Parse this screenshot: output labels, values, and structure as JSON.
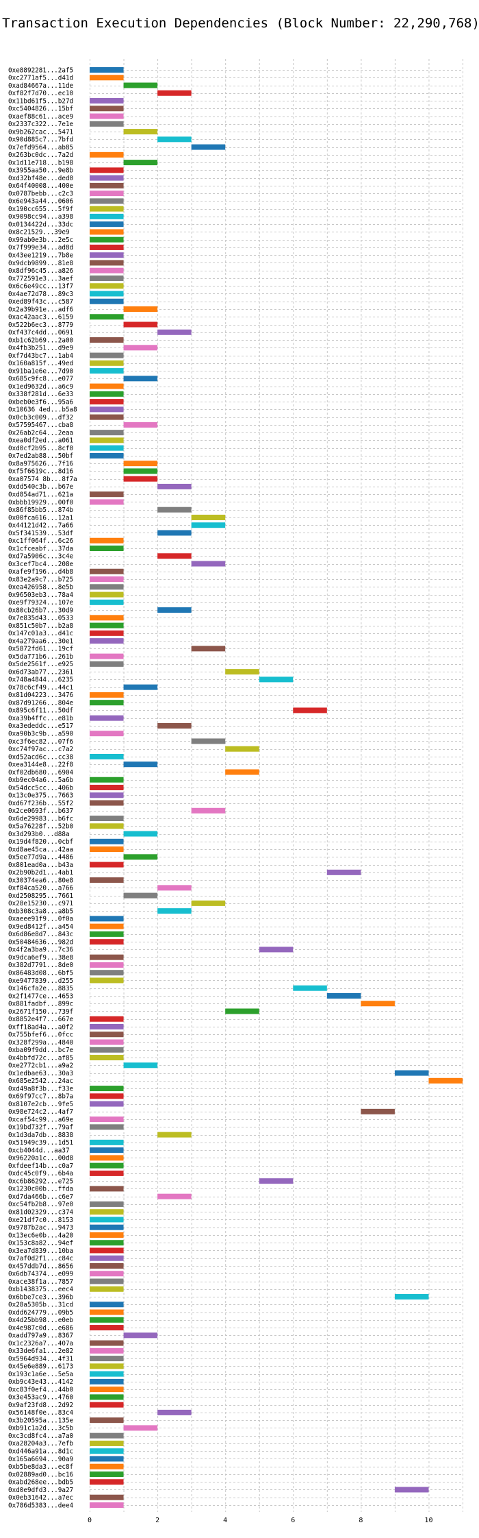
{
  "chart_data": {
    "type": "bar",
    "orientation": "horizontal-gantt",
    "title": "Transaction Execution Dependencies (Block Number: 22,290,768)",
    "xlabel": "",
    "ylabel": "",
    "xlim": [
      0,
      11
    ],
    "xticks": [
      0,
      2,
      4,
      6,
      8,
      10
    ],
    "grid": true,
    "transactions": [
      {
        "label": "0xe8892281...2af5",
        "start": 0,
        "color": "#1f77b4"
      },
      {
        "label": "0xc2771af5...d41d",
        "start": 0,
        "color": "#ff7f0e"
      },
      {
        "label": "0xad84667a...11de",
        "start": 1,
        "color": "#2ca02c"
      },
      {
        "label": "0xf82f7d70...ec10",
        "start": 2,
        "color": "#d62728"
      },
      {
        "label": "0x11bd61f5...b27d",
        "start": 0,
        "color": "#9467bd"
      },
      {
        "label": "0xc5404826...15bf",
        "start": 0,
        "color": "#8c564b"
      },
      {
        "label": "0xaef88c61...ace9",
        "start": 0,
        "color": "#e377c2"
      },
      {
        "label": "0x2337c322...7e1e",
        "start": 0,
        "color": "#7f7f7f"
      },
      {
        "label": "0x9b262cac...5471",
        "start": 1,
        "color": "#bcbd22"
      },
      {
        "label": "0x90d885c7...7bfd",
        "start": 2,
        "color": "#17becf"
      },
      {
        "label": "0x7efd9564...ab85",
        "start": 3,
        "color": "#1f77b4"
      },
      {
        "label": "0x263bc0dc...7a2d",
        "start": 0,
        "color": "#ff7f0e"
      },
      {
        "label": "0x1d11e718...b198",
        "start": 1,
        "color": "#2ca02c"
      },
      {
        "label": "0x3955aa50...9e8b",
        "start": 0,
        "color": "#d62728"
      },
      {
        "label": "0xd32bf48e...ded0",
        "start": 0,
        "color": "#9467bd"
      },
      {
        "label": "0x64f40008...400e",
        "start": 0,
        "color": "#8c564b"
      },
      {
        "label": "0x0787bebb...c2c3",
        "start": 0,
        "color": "#e377c2"
      },
      {
        "label": "0x6e943a44...0606",
        "start": 0,
        "color": "#7f7f7f"
      },
      {
        "label": "0x190cc655...5f9f",
        "start": 0,
        "color": "#bcbd22"
      },
      {
        "label": "0x9098cc94...a398",
        "start": 0,
        "color": "#17becf"
      },
      {
        "label": "0x0134422d...33dc",
        "start": 0,
        "color": "#1f77b4"
      },
      {
        "label": "0x8c21529...39e9",
        "start": 0,
        "color": "#ff7f0e"
      },
      {
        "label": "0x99ab0e3b...2e5c",
        "start": 0,
        "color": "#2ca02c"
      },
      {
        "label": "0x7f999e34...ad8d",
        "start": 0,
        "color": "#d62728"
      },
      {
        "label": "0x43ee1219...7b8e",
        "start": 0,
        "color": "#9467bd"
      },
      {
        "label": "0x9dcb9899...81e8",
        "start": 0,
        "color": "#8c564b"
      },
      {
        "label": "0x8df96c45...a826",
        "start": 0,
        "color": "#e377c2"
      },
      {
        "label": "0x772591e3...3aef",
        "start": 0,
        "color": "#7f7f7f"
      },
      {
        "label": "0x6c6e49cc...13f7",
        "start": 0,
        "color": "#bcbd22"
      },
      {
        "label": "0x4ae72d78...89c3",
        "start": 0,
        "color": "#17becf"
      },
      {
        "label": "0xed89f43c...c587",
        "start": 0,
        "color": "#1f77b4"
      },
      {
        "label": "0x2a39b91e...adf6",
        "start": 1,
        "color": "#ff7f0e"
      },
      {
        "label": "0xac42aac3...6159",
        "start": 0,
        "color": "#2ca02c"
      },
      {
        "label": "0x522b6ec3...8779",
        "start": 1,
        "color": "#d62728"
      },
      {
        "label": "0xf437c4dd...0691",
        "start": 2,
        "color": "#9467bd"
      },
      {
        "label": "0xb1c62b69...2a00",
        "start": 0,
        "color": "#8c564b"
      },
      {
        "label": "0x4fb3b251...d9e9",
        "start": 1,
        "color": "#e377c2"
      },
      {
        "label": "0xf7d43bc7...1ab4",
        "start": 0,
        "color": "#7f7f7f"
      },
      {
        "label": "0x160a815f...49ed",
        "start": 0,
        "color": "#bcbd22"
      },
      {
        "label": "0x91ba1e6e...7d90",
        "start": 0,
        "color": "#17becf"
      },
      {
        "label": "0x685c9fc8...e077",
        "start": 1,
        "color": "#1f77b4"
      },
      {
        "label": "0x1ed9632d...a6c9",
        "start": 0,
        "color": "#ff7f0e"
      },
      {
        "label": "0x338f281d...6e33",
        "start": 0,
        "color": "#2ca02c"
      },
      {
        "label": "0xbeb0e3f6...95a6",
        "start": 0,
        "color": "#d62728"
      },
      {
        "label": "0x10636 4ed...b5a8",
        "start": 0,
        "color": "#9467bd"
      },
      {
        "label": "0x0cb3c009...df32",
        "start": 0,
        "color": "#8c564b"
      },
      {
        "label": "0x57595467...cba8",
        "start": 1,
        "color": "#e377c2"
      },
      {
        "label": "0x26ab2c64...2eaa",
        "start": 0,
        "color": "#7f7f7f"
      },
      {
        "label": "0xea0df2ed...a061",
        "start": 0,
        "color": "#bcbd22"
      },
      {
        "label": "0xd0cf2b95...8cf0",
        "start": 0,
        "color": "#17becf"
      },
      {
        "label": "0x7ed2ab88...50bf",
        "start": 0,
        "color": "#1f77b4"
      },
      {
        "label": "0x8a975626...7f16",
        "start": 1,
        "color": "#ff7f0e"
      },
      {
        "label": "0xf5f6619c...8d16",
        "start": 1,
        "color": "#2ca02c"
      },
      {
        "label": "0xa07574 8b...8f7a",
        "start": 1,
        "color": "#d62728"
      },
      {
        "label": "0xdd540c3b...b67e",
        "start": 2,
        "color": "#9467bd"
      },
      {
        "label": "0xd854ad71...621a",
        "start": 0,
        "color": "#8c564b"
      },
      {
        "label": "0xbbb19929...00f0",
        "start": 0,
        "color": "#e377c2"
      },
      {
        "label": "0x86f85bb5...874b",
        "start": 2,
        "color": "#7f7f7f"
      },
      {
        "label": "0x00fca616...12a1",
        "start": 3,
        "color": "#bcbd22"
      },
      {
        "label": "0x44121d42...7a66",
        "start": 3,
        "color": "#17becf"
      },
      {
        "label": "0x5f341539...53df",
        "start": 2,
        "color": "#1f77b4"
      },
      {
        "label": "0xc1ff064f...6c26",
        "start": 0,
        "color": "#ff7f0e"
      },
      {
        "label": "0x1cfceabf...37da",
        "start": 0,
        "color": "#2ca02c"
      },
      {
        "label": "0xd7a5906c...3c4e",
        "start": 2,
        "color": "#d62728"
      },
      {
        "label": "0x3cef7bc4...208e",
        "start": 3,
        "color": "#9467bd"
      },
      {
        "label": "0xafe9f196...d4b8",
        "start": 0,
        "color": "#8c564b"
      },
      {
        "label": "0x83e2a9c7...b725",
        "start": 0,
        "color": "#e377c2"
      },
      {
        "label": "0xea426958...8e5b",
        "start": 0,
        "color": "#7f7f7f"
      },
      {
        "label": "0x96503eb3...78a4",
        "start": 0,
        "color": "#bcbd22"
      },
      {
        "label": "0xe9f79324...107e",
        "start": 0,
        "color": "#17becf"
      },
      {
        "label": "0x80cb26b7...30d9",
        "start": 2,
        "color": "#1f77b4"
      },
      {
        "label": "0x7e835d43...0533",
        "start": 0,
        "color": "#ff7f0e"
      },
      {
        "label": "0x851c50b7...b2a8",
        "start": 0,
        "color": "#2ca02c"
      },
      {
        "label": "0x147c01a3...d41c",
        "start": 0,
        "color": "#d62728"
      },
      {
        "label": "0x4a279aa6...30e1",
        "start": 0,
        "color": "#9467bd"
      },
      {
        "label": "0x5872fd61...19cf",
        "start": 3,
        "color": "#8c564b"
      },
      {
        "label": "0x5da771b6...261b",
        "start": 0,
        "color": "#e377c2"
      },
      {
        "label": "0x5de2561f...e925",
        "start": 0,
        "color": "#7f7f7f"
      },
      {
        "label": "0x6d73ab77...2361",
        "start": 4,
        "color": "#bcbd22"
      },
      {
        "label": "0x748a4844...6235",
        "start": 5,
        "color": "#17becf"
      },
      {
        "label": "0x78c6cf49...44c1",
        "start": 1,
        "color": "#1f77b4"
      },
      {
        "label": "0x81d04223...3476",
        "start": 0,
        "color": "#ff7f0e"
      },
      {
        "label": "0x87d91266...804e",
        "start": 0,
        "color": "#2ca02c"
      },
      {
        "label": "0x895c6f11...50df",
        "start": 6,
        "color": "#d62728"
      },
      {
        "label": "0xa39b4ffc...e81b",
        "start": 0,
        "color": "#9467bd"
      },
      {
        "label": "0xa3ededdc...e517",
        "start": 2,
        "color": "#8c564b"
      },
      {
        "label": "0xa90b3c9b...a590",
        "start": 0,
        "color": "#e377c2"
      },
      {
        "label": "0xc3f6ec82...07f6",
        "start": 3,
        "color": "#7f7f7f"
      },
      {
        "label": "0xc74f97ac...c7a2",
        "start": 4,
        "color": "#bcbd22"
      },
      {
        "label": "0xd52acd6c...cc38",
        "start": 0,
        "color": "#17becf"
      },
      {
        "label": "0xea3144e8...22f8",
        "start": 1,
        "color": "#1f77b4"
      },
      {
        "label": "0xf02db680...6904",
        "start": 4,
        "color": "#ff7f0e"
      },
      {
        "label": "0xb9ec04a6...5a6b",
        "start": 0,
        "color": "#2ca02c"
      },
      {
        "label": "0x54dcc5cc...406b",
        "start": 0,
        "color": "#d62728"
      },
      {
        "label": "0x13c0e375...7663",
        "start": 0,
        "color": "#9467bd"
      },
      {
        "label": "0xd67f236b...55f2",
        "start": 0,
        "color": "#8c564b"
      },
      {
        "label": "0x2ce0693f...b637",
        "start": 3,
        "color": "#e377c2"
      },
      {
        "label": "0x6de29983...b6fc",
        "start": 0,
        "color": "#7f7f7f"
      },
      {
        "label": "0x5a76228f...52b0",
        "start": 0,
        "color": "#bcbd22"
      },
      {
        "label": "0x3d293b0...d88a",
        "start": 1,
        "color": "#17becf"
      },
      {
        "label": "0x19d4f820...0cbf",
        "start": 0,
        "color": "#1f77b4"
      },
      {
        "label": "0xd8ae45ca...42aa",
        "start": 0,
        "color": "#ff7f0e"
      },
      {
        "label": "0x5ee77d9a...4486",
        "start": 1,
        "color": "#2ca02c"
      },
      {
        "label": "0x801ead0a...b43a",
        "start": 0,
        "color": "#d62728"
      },
      {
        "label": "0x2b90b2d1...4ab1",
        "start": 7,
        "color": "#9467bd"
      },
      {
        "label": "0x30374ea6...80e8",
        "start": 0,
        "color": "#8c564b"
      },
      {
        "label": "0xf84ca520...a766",
        "start": 2,
        "color": "#e377c2"
      },
      {
        "label": "0xd2508295...7661",
        "start": 1,
        "color": "#7f7f7f"
      },
      {
        "label": "0x28e15230...c971",
        "start": 3,
        "color": "#bcbd22"
      },
      {
        "label": "0xb308c3a8...a8b5",
        "start": 2,
        "color": "#17becf"
      },
      {
        "label": "0xaeee91f9...0f0a",
        "start": 0,
        "color": "#1f77b4"
      },
      {
        "label": "0x9ed8412f...a454",
        "start": 0,
        "color": "#ff7f0e"
      },
      {
        "label": "0x6d86e8d7...843c",
        "start": 0,
        "color": "#2ca02c"
      },
      {
        "label": "0x50484636...982d",
        "start": 0,
        "color": "#d62728"
      },
      {
        "label": "0x4f2a3ba9...7c36",
        "start": 5,
        "color": "#9467bd"
      },
      {
        "label": "0x9dca6ef9...38e8",
        "start": 0,
        "color": "#8c564b"
      },
      {
        "label": "0x382d7791...8de0",
        "start": 0,
        "color": "#e377c2"
      },
      {
        "label": "0x86483d08...6bf5",
        "start": 0,
        "color": "#7f7f7f"
      },
      {
        "label": "0xe9477839...d255",
        "start": 0,
        "color": "#bcbd22"
      },
      {
        "label": "0x146cfa2e...8835",
        "start": 6,
        "color": "#17becf"
      },
      {
        "label": "0x2f1477ce...4653",
        "start": 7,
        "color": "#1f77b4"
      },
      {
        "label": "0x881fadbf...899c",
        "start": 8,
        "color": "#ff7f0e"
      },
      {
        "label": "0x2671f150...739f",
        "start": 4,
        "color": "#2ca02c"
      },
      {
        "label": "0x8852e4f7...667e",
        "start": 0,
        "color": "#d62728"
      },
      {
        "label": "0xff18ad4a...a0f2",
        "start": 0,
        "color": "#9467bd"
      },
      {
        "label": "0x755bfef6...0fcc",
        "start": 0,
        "color": "#8c564b"
      },
      {
        "label": "0x328f299a...4840",
        "start": 0,
        "color": "#e377c2"
      },
      {
        "label": "0xba09f9dd...bc7e",
        "start": 0,
        "color": "#7f7f7f"
      },
      {
        "label": "0x4bbfd72c...af85",
        "start": 0,
        "color": "#bcbd22"
      },
      {
        "label": "0xe2772cb1...a9a2",
        "start": 1,
        "color": "#17becf"
      },
      {
        "label": "0x1edbae63...30a3",
        "start": 9,
        "color": "#1f77b4"
      },
      {
        "label": "0x685e2542...24ac",
        "start": 10,
        "color": "#ff7f0e"
      },
      {
        "label": "0xd49a8f3b...f33e",
        "start": 0,
        "color": "#2ca02c"
      },
      {
        "label": "0x69f97cc7...8b7a",
        "start": 0,
        "color": "#d62728"
      },
      {
        "label": "0x8107e2cb...9fe5",
        "start": 0,
        "color": "#9467bd"
      },
      {
        "label": "0x98e724c2...4af7",
        "start": 8,
        "color": "#8c564b"
      },
      {
        "label": "0xcaf54c99...a69e",
        "start": 0,
        "color": "#e377c2"
      },
      {
        "label": "0x19bd732f...79af",
        "start": 0,
        "color": "#7f7f7f"
      },
      {
        "label": "0x1d3da7db...8838",
        "start": 2,
        "color": "#bcbd22"
      },
      {
        "label": "0x51949c39...1d51",
        "start": 0,
        "color": "#17becf"
      },
      {
        "label": "0xcb4044d...aa37",
        "start": 0,
        "color": "#1f77b4"
      },
      {
        "label": "0x96220a1c...00d8",
        "start": 0,
        "color": "#ff7f0e"
      },
      {
        "label": "0xfdeef14b...c0a7",
        "start": 0,
        "color": "#2ca02c"
      },
      {
        "label": "0xdc45c0f9...6b4a",
        "start": 0,
        "color": "#d62728"
      },
      {
        "label": "0xc6b86292...e725",
        "start": 5,
        "color": "#9467bd"
      },
      {
        "label": "0x1230c00b...ffda",
        "start": 0,
        "color": "#8c564b"
      },
      {
        "label": "0xd7da466b...c6e7",
        "start": 2,
        "color": "#e377c2"
      },
      {
        "label": "0xc54fb2b8...97e0",
        "start": 0,
        "color": "#7f7f7f"
      },
      {
        "label": "0x81d02329...c374",
        "start": 0,
        "color": "#bcbd22"
      },
      {
        "label": "0xe21df7c0...8153",
        "start": 0,
        "color": "#17becf"
      },
      {
        "label": "0x9787b2ac...9473",
        "start": 0,
        "color": "#1f77b4"
      },
      {
        "label": "0x13ec6e0b...4a20",
        "start": 0,
        "color": "#ff7f0e"
      },
      {
        "label": "0x153c8a82...94ef",
        "start": 0,
        "color": "#2ca02c"
      },
      {
        "label": "0x3ea7d839...10ba",
        "start": 0,
        "color": "#d62728"
      },
      {
        "label": "0x7af0d2f1...c84c",
        "start": 0,
        "color": "#9467bd"
      },
      {
        "label": "0x457ddb7d...8656",
        "start": 0,
        "color": "#8c564b"
      },
      {
        "label": "0x6db74374...e099",
        "start": 0,
        "color": "#e377c2"
      },
      {
        "label": "0xace38f1a...7857",
        "start": 0,
        "color": "#7f7f7f"
      },
      {
        "label": "0xb1438375...eec4",
        "start": 0,
        "color": "#bcbd22"
      },
      {
        "label": "0x6bbe7ce3...396b",
        "start": 9,
        "color": "#17becf"
      },
      {
        "label": "0x28a5305b...31cd",
        "start": 0,
        "color": "#1f77b4"
      },
      {
        "label": "0xdd624779...09b5",
        "start": 0,
        "color": "#ff7f0e"
      },
      {
        "label": "0x4d25bb98...e0eb",
        "start": 0,
        "color": "#2ca02c"
      },
      {
        "label": "0x4e987c0d...e686",
        "start": 0,
        "color": "#d62728"
      },
      {
        "label": "0xadd797a9...8367",
        "start": 1,
        "color": "#9467bd"
      },
      {
        "label": "0x1c2326a7...407a",
        "start": 0,
        "color": "#8c564b"
      },
      {
        "label": "0x33de6fa1...2e82",
        "start": 0,
        "color": "#e377c2"
      },
      {
        "label": "0x5964d934...4f31",
        "start": 0,
        "color": "#7f7f7f"
      },
      {
        "label": "0x45e6e889...6173",
        "start": 0,
        "color": "#bcbd22"
      },
      {
        "label": "0x193c1a6e...5e5a",
        "start": 0,
        "color": "#17becf"
      },
      {
        "label": "0xb9c43e43...4142",
        "start": 0,
        "color": "#1f77b4"
      },
      {
        "label": "0xc83f0ef4...44b0",
        "start": 0,
        "color": "#ff7f0e"
      },
      {
        "label": "0x3e453ac9...4760",
        "start": 0,
        "color": "#2ca02c"
      },
      {
        "label": "0x9af23fd8...2d92",
        "start": 0,
        "color": "#d62728"
      },
      {
        "label": "0x56148f0e...83c4",
        "start": 2,
        "color": "#9467bd"
      },
      {
        "label": "0x3b20595a...135e",
        "start": 0,
        "color": "#8c564b"
      },
      {
        "label": "0xb91c1a2d...3c5b",
        "start": 1,
        "color": "#e377c2"
      },
      {
        "label": "0xc3cd8fc4...a7a0",
        "start": 0,
        "color": "#7f7f7f"
      },
      {
        "label": "0xa28204a3...7efb",
        "start": 0,
        "color": "#bcbd22"
      },
      {
        "label": "0xd446a91a...8d1c",
        "start": 0,
        "color": "#17becf"
      },
      {
        "label": "0x165a6694...90a9",
        "start": 0,
        "color": "#1f77b4"
      },
      {
        "label": "0xb5be8da3...ec8f",
        "start": 0,
        "color": "#ff7f0e"
      },
      {
        "label": "0x02889ad0...bc16",
        "start": 0,
        "color": "#2ca02c"
      },
      {
        "label": "0xabd268ee...bdb5",
        "start": 0,
        "color": "#d62728"
      },
      {
        "label": "0xd0e9dfd3...9a27",
        "start": 9,
        "color": "#9467bd"
      },
      {
        "label": "0x0eb31642...a7ec",
        "start": 0,
        "color": "#8c564b"
      },
      {
        "label": "0x786d5383...dee4",
        "start": 0,
        "color": "#e377c2"
      }
    ]
  }
}
